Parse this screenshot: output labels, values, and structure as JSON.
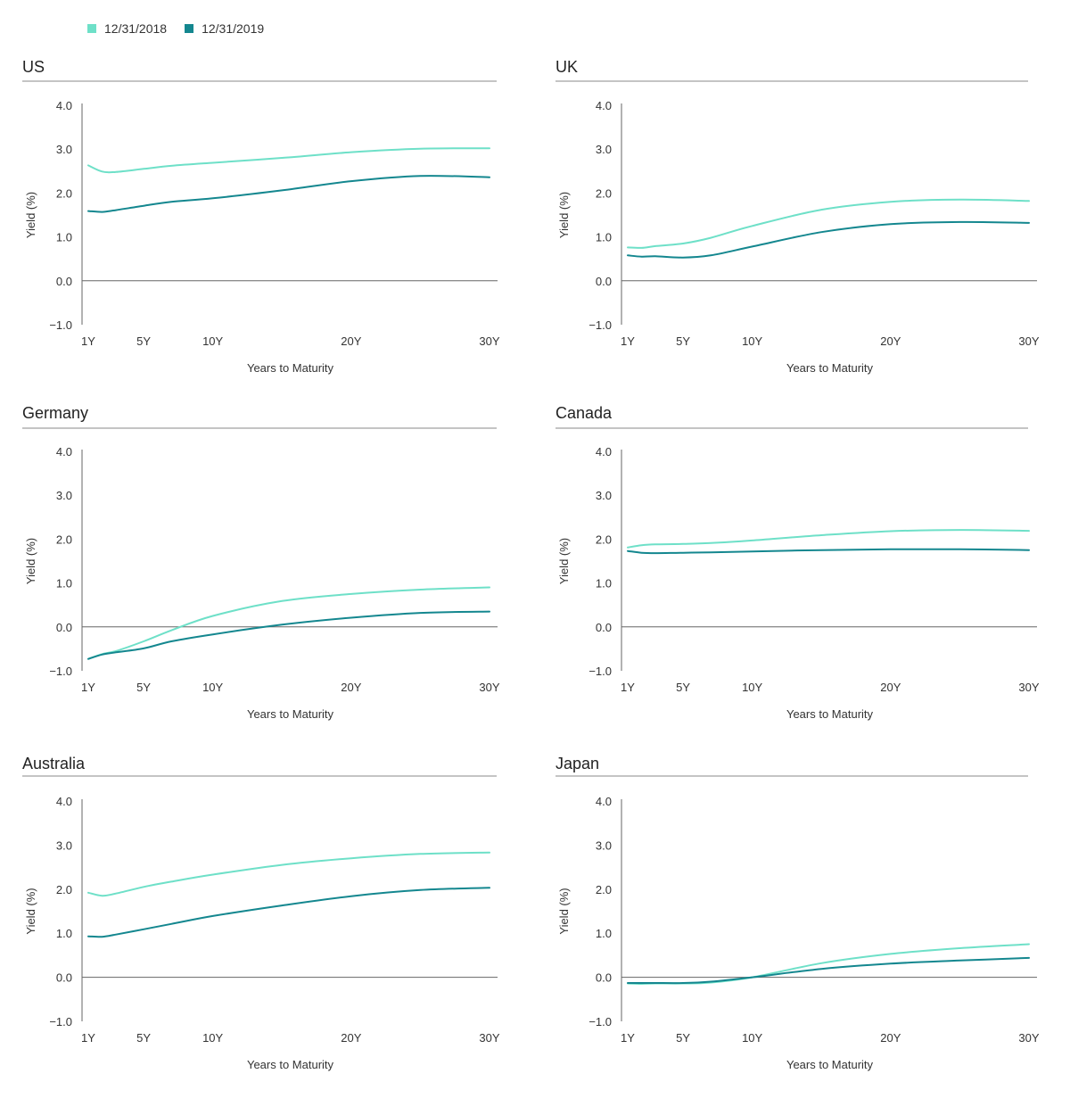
{
  "legend": [
    {
      "label": "12/31/2018",
      "color": "#6ee0c8"
    },
    {
      "label": "12/31/2019",
      "color": "#14878f"
    }
  ],
  "chart_data": [
    {
      "type": "line",
      "title": "US",
      "xlabel": "Years to Maturity",
      "ylabel": "Yield (%)",
      "ylim": [
        -1,
        4
      ],
      "yticks": [
        "4.0",
        "3.0",
        "2.0",
        "1.0",
        "0.0",
        "−1.0"
      ],
      "xlim": [
        1,
        30
      ],
      "xticks": [
        {
          "x": 1,
          "label": "1Y"
        },
        {
          "x": 5,
          "label": "5Y"
        },
        {
          "x": 10,
          "label": "10Y"
        },
        {
          "x": 20,
          "label": "20Y"
        },
        {
          "x": 30,
          "label": "30Y"
        }
      ],
      "series": [
        {
          "name": "12/31/2018",
          "x": [
            1,
            2,
            3,
            5,
            7,
            10,
            15,
            20,
            25,
            30
          ],
          "values": [
            2.63,
            2.49,
            2.48,
            2.55,
            2.62,
            2.69,
            2.8,
            2.93,
            3.01,
            3.02
          ]
        },
        {
          "name": "12/31/2019",
          "x": [
            1,
            2,
            3,
            5,
            7,
            10,
            15,
            20,
            25,
            30
          ],
          "values": [
            1.59,
            1.57,
            1.61,
            1.71,
            1.8,
            1.88,
            2.06,
            2.27,
            2.39,
            2.36
          ]
        }
      ]
    },
    {
      "type": "line",
      "title": "UK",
      "xlabel": "Years to Maturity",
      "ylabel": "Yield (%)",
      "ylim": [
        -1,
        4
      ],
      "yticks": [
        "4.0",
        "3.0",
        "2.0",
        "1.0",
        "0.0",
        "−1.0"
      ],
      "xlim": [
        1,
        30
      ],
      "xticks": [
        {
          "x": 1,
          "label": "1Y"
        },
        {
          "x": 5,
          "label": "5Y"
        },
        {
          "x": 10,
          "label": "10Y"
        },
        {
          "x": 20,
          "label": "20Y"
        },
        {
          "x": 30,
          "label": "30Y"
        }
      ],
      "series": [
        {
          "name": "12/31/2018",
          "x": [
            1,
            2,
            3,
            5,
            7,
            10,
            15,
            20,
            25,
            30
          ],
          "values": [
            0.76,
            0.75,
            0.79,
            0.85,
            0.98,
            1.25,
            1.62,
            1.8,
            1.85,
            1.82
          ]
        },
        {
          "name": "12/31/2019",
          "x": [
            1,
            2,
            3,
            5,
            7,
            10,
            15,
            20,
            25,
            30
          ],
          "values": [
            0.58,
            0.55,
            0.56,
            0.53,
            0.58,
            0.78,
            1.11,
            1.29,
            1.34,
            1.32
          ]
        }
      ]
    },
    {
      "type": "line",
      "title": "Germany",
      "xlabel": "Years to Maturity",
      "ylabel": "Yield (%)",
      "ylim": [
        -1,
        4
      ],
      "yticks": [
        "4.0",
        "3.0",
        "2.0",
        "1.0",
        "0.0",
        "−1.0"
      ],
      "xlim": [
        1,
        30
      ],
      "xticks": [
        {
          "x": 1,
          "label": "1Y"
        },
        {
          "x": 5,
          "label": "5Y"
        },
        {
          "x": 10,
          "label": "10Y"
        },
        {
          "x": 20,
          "label": "20Y"
        },
        {
          "x": 30,
          "label": "30Y"
        }
      ],
      "series": [
        {
          "name": "12/31/2018",
          "x": [
            1,
            2,
            3,
            5,
            7,
            10,
            15,
            20,
            25,
            30
          ],
          "values": [
            -0.73,
            -0.62,
            -0.55,
            -0.33,
            -0.08,
            0.25,
            0.59,
            0.75,
            0.85,
            0.9
          ]
        },
        {
          "name": "12/31/2019",
          "x": [
            1,
            2,
            3,
            5,
            7,
            10,
            15,
            20,
            25,
            30
          ],
          "values": [
            -0.73,
            -0.63,
            -0.58,
            -0.49,
            -0.33,
            -0.17,
            0.05,
            0.21,
            0.32,
            0.35
          ]
        }
      ]
    },
    {
      "type": "line",
      "title": "Canada",
      "xlabel": "Years to Maturity",
      "ylabel": "Yield (%)",
      "ylim": [
        -1,
        4
      ],
      "yticks": [
        "4.0",
        "3.0",
        "2.0",
        "1.0",
        "0.0",
        "−1.0"
      ],
      "xlim": [
        1,
        30
      ],
      "xticks": [
        {
          "x": 1,
          "label": "1Y"
        },
        {
          "x": 5,
          "label": "5Y"
        },
        {
          "x": 10,
          "label": "10Y"
        },
        {
          "x": 20,
          "label": "20Y"
        },
        {
          "x": 30,
          "label": "30Y"
        }
      ],
      "series": [
        {
          "name": "12/31/2018",
          "x": [
            1,
            2,
            3,
            5,
            7,
            10,
            15,
            20,
            25,
            30
          ],
          "values": [
            1.81,
            1.86,
            1.88,
            1.89,
            1.91,
            1.97,
            2.09,
            2.18,
            2.21,
            2.19
          ]
        },
        {
          "name": "12/31/2019",
          "x": [
            1,
            2,
            3,
            5,
            7,
            10,
            15,
            20,
            25,
            30
          ],
          "values": [
            1.73,
            1.69,
            1.68,
            1.69,
            1.7,
            1.72,
            1.75,
            1.77,
            1.77,
            1.75
          ]
        }
      ]
    },
    {
      "type": "line",
      "title": "Australia",
      "xlabel": "Years to Maturity",
      "ylabel": "Yield (%)",
      "ylim": [
        -1,
        4
      ],
      "yticks": [
        "4.0",
        "3.0",
        "2.0",
        "1.0",
        "0.0",
        "−1.0"
      ],
      "xlim": [
        1,
        30
      ],
      "xticks": [
        {
          "x": 1,
          "label": "1Y"
        },
        {
          "x": 5,
          "label": "5Y"
        },
        {
          "x": 10,
          "label": "10Y"
        },
        {
          "x": 20,
          "label": "20Y"
        },
        {
          "x": 30,
          "label": "30Y"
        }
      ],
      "series": [
        {
          "name": "12/31/2018",
          "x": [
            1,
            2,
            3,
            5,
            7,
            10,
            15,
            20,
            25,
            30
          ],
          "values": [
            1.92,
            1.85,
            1.9,
            2.05,
            2.17,
            2.33,
            2.55,
            2.7,
            2.8,
            2.83
          ]
        },
        {
          "name": "12/31/2019",
          "x": [
            1,
            2,
            3,
            5,
            7,
            10,
            15,
            20,
            25,
            30
          ],
          "values": [
            0.93,
            0.92,
            0.97,
            1.09,
            1.21,
            1.39,
            1.63,
            1.84,
            1.98,
            2.03
          ]
        }
      ]
    },
    {
      "type": "line",
      "title": "Japan",
      "xlabel": "Years to Maturity",
      "ylabel": "Yield (%)",
      "ylim": [
        -1,
        4
      ],
      "yticks": [
        "4.0",
        "3.0",
        "2.0",
        "1.0",
        "0.0",
        "−1.0"
      ],
      "xlim": [
        1,
        30
      ],
      "xticks": [
        {
          "x": 1,
          "label": "1Y"
        },
        {
          "x": 5,
          "label": "5Y"
        },
        {
          "x": 10,
          "label": "10Y"
        },
        {
          "x": 20,
          "label": "20Y"
        },
        {
          "x": 30,
          "label": "30Y"
        }
      ],
      "series": [
        {
          "name": "12/31/2018",
          "x": [
            1,
            2,
            3,
            5,
            7,
            10,
            15,
            20,
            25,
            30
          ],
          "values": [
            -0.14,
            -0.15,
            -0.14,
            -0.14,
            -0.12,
            0.0,
            0.32,
            0.53,
            0.66,
            0.75
          ]
        },
        {
          "name": "12/31/2019",
          "x": [
            1,
            2,
            3,
            5,
            7,
            10,
            15,
            20,
            25,
            30
          ],
          "values": [
            -0.13,
            -0.13,
            -0.13,
            -0.13,
            -0.1,
            0.0,
            0.19,
            0.31,
            0.38,
            0.44
          ]
        }
      ]
    }
  ]
}
